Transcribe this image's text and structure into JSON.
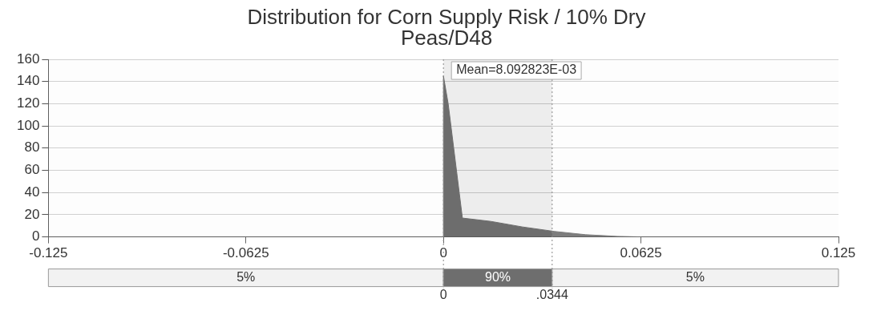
{
  "chart_data": {
    "type": "area",
    "title": "Distribution for Corn Supply Risk / 10% Dry Peas/D48",
    "x": [
      0,
      0,
      0.0015,
      0.006,
      0.015,
      0.025,
      0.035,
      0.045,
      0.055,
      0.0625
    ],
    "values": [
      0,
      145,
      120,
      17,
      14,
      9,
      5,
      2,
      0.5,
      0
    ],
    "color": "#6e6e6e",
    "marker": "none",
    "grid": "y",
    "xlim": [
      -0.125,
      0.125
    ],
    "xticks": [
      -0.125,
      -0.0625,
      0,
      0.0625,
      0.125
    ],
    "ylim": [
      0,
      160
    ],
    "yticks": [
      0,
      20,
      40,
      60,
      80,
      100,
      120,
      140,
      160
    ],
    "annotations": [
      "Mean=8.092823E-03"
    ],
    "ref_lines": [
      {
        "axis": "x",
        "value": 0,
        "label": "0"
      },
      {
        "axis": "x",
        "value": 0.0344,
        "label": ".0344"
      }
    ],
    "bands": [
      {
        "axis": "x",
        "from": -0.125,
        "to": 0,
        "label": "5%",
        "color": "#f2f2f2"
      },
      {
        "axis": "x",
        "from": 0,
        "to": 0.0344,
        "label": "90%",
        "color": "#6e6e6e"
      },
      {
        "axis": "x",
        "from": 0.0344,
        "to": 0.125,
        "label": "5%",
        "color": "#f2f2f2"
      }
    ]
  }
}
